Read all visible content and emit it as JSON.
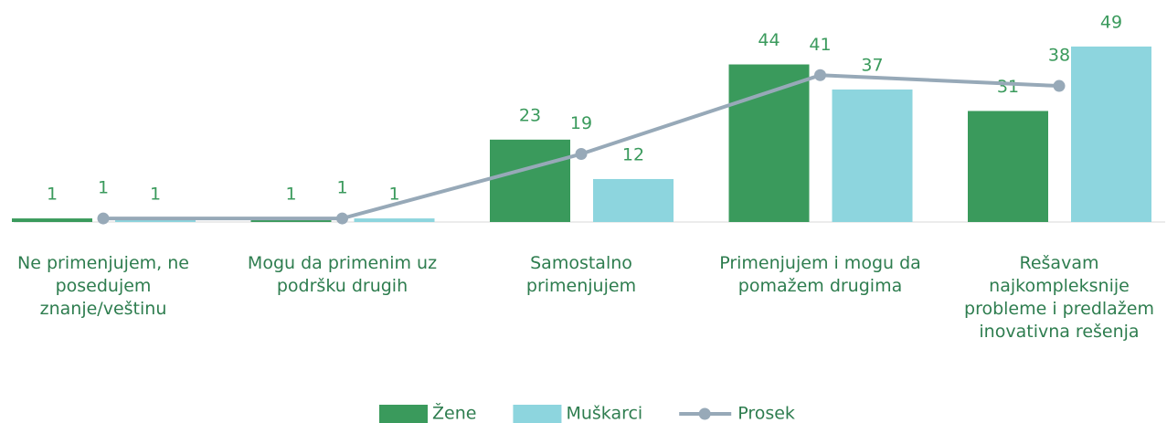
{
  "chart_data": {
    "type": "bar",
    "categories": [
      "Ne primenjujem, ne\nposedujem\nznanje/veštinu",
      "Mogu da primenim uz\npodršku drugih",
      "Samostalno\nprimenjujem",
      "Primenjujem i mogu da\npomažem drugima",
      "Rešavam\nnajkompleksnije\nprobleme i predlažem\ninovativna rešenja"
    ],
    "series": [
      {
        "name": "Žene",
        "type": "bar",
        "color": "#3a9a5c",
        "values": [
          1,
          1,
          23,
          44,
          31
        ]
      },
      {
        "name": "Muškarci",
        "type": "bar",
        "color": "#8dd5de",
        "values": [
          1,
          1,
          12,
          37,
          49
        ]
      },
      {
        "name": "Prosek",
        "type": "line",
        "color": "#97a9b8",
        "values": [
          1,
          1,
          19,
          41,
          38
        ]
      }
    ],
    "ylim": [
      0,
      50
    ],
    "legend": "bottom"
  }
}
